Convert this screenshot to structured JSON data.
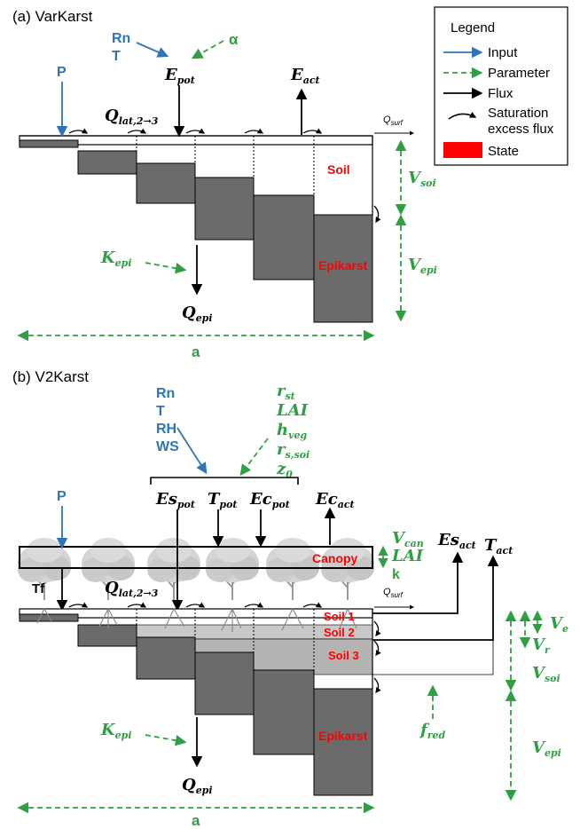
{
  "panel_a": {
    "title": "(a) VarKarst",
    "inputs": {
      "rn": "Rn",
      "t": "T",
      "p": "P"
    },
    "param_alpha": "α",
    "fluxes": {
      "epot_main": "E",
      "epot_sub": "pot",
      "eact_main": "E",
      "eact_sub": "act",
      "qlat_main": "Q",
      "qlat_sub": "lat,2→3",
      "qsurf_main": "Q",
      "qsurf_sub": "surf",
      "qepi_main": "Q",
      "qepi_sub": "epi"
    },
    "params": {
      "vsoi_main": "V",
      "vsoi_sub": "soi",
      "vepi_main": "V",
      "vepi_sub": "epi",
      "kepi_main": "K",
      "kepi_sub": "epi",
      "a": "a"
    },
    "states": {
      "soil": "Soil",
      "epikarst": "Epikarst"
    }
  },
  "legend": {
    "title": "Legend",
    "input": "Input",
    "parameter": "Parameter",
    "flux": "Flux",
    "saturation_line1": "Saturation",
    "saturation_line2": "excess flux",
    "state": "State"
  },
  "panel_b": {
    "title": "(b) V2Karst",
    "inputs": {
      "rn": "Rn",
      "t": "T",
      "rh": "RH",
      "ws": "WS",
      "p": "P"
    },
    "veg_params": [
      {
        "main": "r",
        "sub": "st"
      },
      {
        "main": "LAI",
        "sub": ""
      },
      {
        "main": "h",
        "sub": "veg"
      },
      {
        "main": "r",
        "sub": "s,soi"
      },
      {
        "main": "z",
        "sub": "0"
      }
    ],
    "fluxes": {
      "espot_main": "Es",
      "espot_sub": "pot",
      "tpot_main": "T",
      "tpot_sub": "pot",
      "ecpot_main": "Ec",
      "ecpot_sub": "pot",
      "ecact_main": "Ec",
      "ecact_sub": "act",
      "esact_main": "Es",
      "esact_sub": "act",
      "tact_main": "T",
      "tact_sub": "act",
      "tf": "Tf",
      "qlat_main": "Q",
      "qlat_sub": "lat,2→3",
      "qsurf_main": "Q",
      "qsurf_sub": "surf",
      "qepi_main": "Q",
      "qepi_sub": "epi"
    },
    "canopy_params": {
      "vcan_main": "V",
      "vcan_sub": "can",
      "lai": "LAI",
      "k": "k"
    },
    "params": {
      "ve_main": "V",
      "ve_sub": "e",
      "vr_main": "V",
      "vr_sub": "r",
      "vsoi_main": "V",
      "vsoi_sub": "soi",
      "vepi_main": "V",
      "vepi_sub": "epi",
      "fred_main": "f",
      "fred_sub": "red",
      "kepi_main": "K",
      "kepi_sub": "epi",
      "a": "a"
    },
    "states": {
      "canopy": "Canopy",
      "soil1": "Soil 1",
      "soil2": "Soil 2",
      "soil3": "Soil 3",
      "epikarst": "Epikarst"
    }
  },
  "colors": {
    "input_blue": "#2e75b6",
    "param_green": "#2ea043",
    "state_red": "#ff0000",
    "block_dark": "#6b6b6b",
    "soil2_gray": "#c8c8c8",
    "soil3_gray": "#b4b4b4"
  }
}
